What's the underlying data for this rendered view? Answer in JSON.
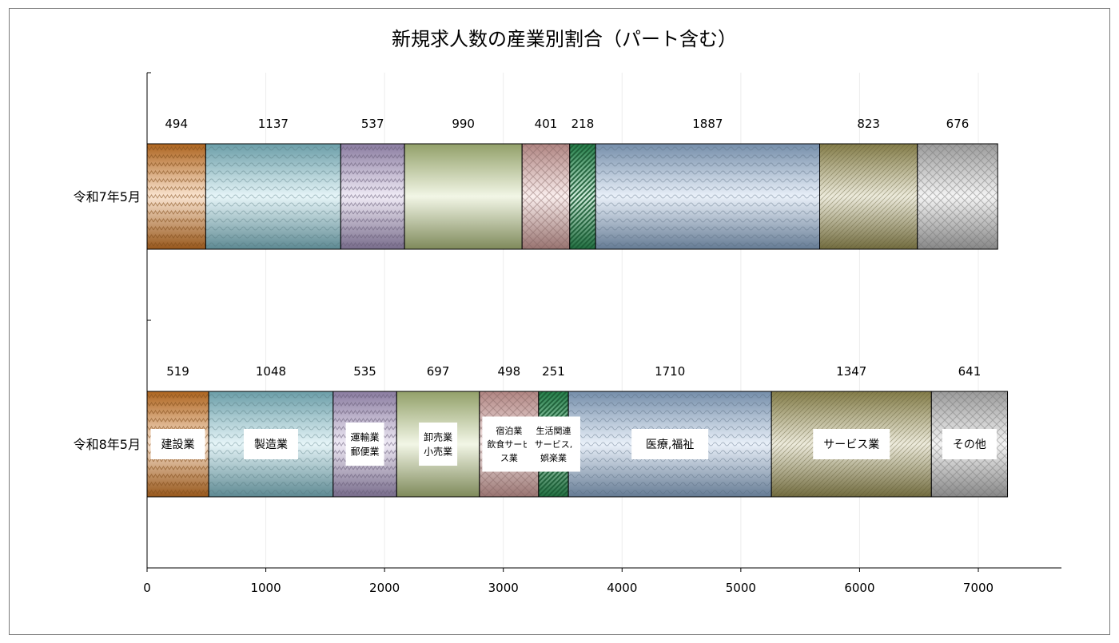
{
  "chart_data": {
    "type": "bar",
    "orientation": "horizontal",
    "stacked": true,
    "title": "新規求人数の産業別割合（パート含む）",
    "categories": [
      "令和7年5月",
      "令和8年5月"
    ],
    "xlim": [
      0,
      7700
    ],
    "xticks": [
      0,
      1000,
      2000,
      3000,
      4000,
      5000,
      6000,
      7000
    ],
    "grid": true,
    "legend": "none",
    "series": [
      {
        "name": "建設業",
        "label_lines": [
          "建設業"
        ],
        "color": "#e8862a",
        "values": [
          494,
          519
        ]
      },
      {
        "name": "製造業",
        "label_lines": [
          "製造業"
        ],
        "color": "#8fd3e0",
        "values": [
          1137,
          1048
        ]
      },
      {
        "name": "運輸業郵便業",
        "label_lines": [
          "運輸業",
          "郵便業"
        ],
        "color": "#b9a6d6",
        "values": [
          537,
          535
        ]
      },
      {
        "name": "卸売業小売業",
        "label_lines": [
          "卸売業",
          "小売業"
        ],
        "color": "#c3d58c",
        "values": [
          990,
          697
        ]
      },
      {
        "name": "宿泊業飲食サービス業",
        "label_lines": [
          "宿泊業",
          "飲食サービ",
          "ス業"
        ],
        "color": "#eab1ad",
        "values": [
          401,
          498
        ]
      },
      {
        "name": "生活関連サービス,娯楽業",
        "label_lines": [
          "生活関連",
          "サービス,",
          "娯楽業"
        ],
        "color": "#2fa860",
        "values": [
          218,
          251
        ]
      },
      {
        "name": "医療,福祉",
        "label_lines": [
          "医療,福祉"
        ],
        "color": "#9cbde3",
        "values": [
          1887,
          1710
        ]
      },
      {
        "name": "サービス業",
        "label_lines": [
          "サービス業"
        ],
        "color": "#aea560",
        "values": [
          823,
          1347
        ]
      },
      {
        "name": "その他",
        "label_lines": [
          "その他"
        ],
        "color": "#cfcfcf",
        "values": [
          676,
          641
        ]
      }
    ]
  }
}
